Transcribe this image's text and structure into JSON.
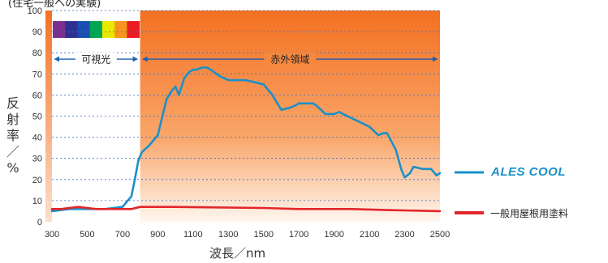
{
  "chart_data": {
    "type": "line",
    "title": "(住宅一般への実験)",
    "xlabel": "波長／nm",
    "ylabel": "反射率／%",
    "xlim": [
      300,
      2500
    ],
    "ylim": [
      0,
      100
    ],
    "xticks": [
      300,
      500,
      700,
      900,
      1100,
      1300,
      1500,
      1700,
      1900,
      2100,
      2300,
      2500
    ],
    "yticks": [
      0,
      10,
      20,
      30,
      40,
      50,
      60,
      70,
      80,
      90,
      100
    ],
    "grid": true,
    "legend": "right",
    "regions": [
      {
        "label": "可視光",
        "from": 300,
        "to": 800
      },
      {
        "label": "赤外領域",
        "from": 800,
        "to": 2500
      }
    ],
    "series": [
      {
        "name": "ALES COOL",
        "color": "#1a90c8",
        "x": [
          300,
          400,
          500,
          600,
          700,
          750,
          770,
          790,
          810,
          850,
          900,
          950,
          980,
          1000,
          1020,
          1050,
          1080,
          1100,
          1120,
          1150,
          1180,
          1200,
          1250,
          1300,
          1350,
          1400,
          1450,
          1500,
          1550,
          1600,
          1650,
          1680,
          1700,
          1740,
          1780,
          1800,
          1850,
          1900,
          1930,
          1950,
          2000,
          2050,
          2100,
          2150,
          2180,
          2200,
          2250,
          2280,
          2300,
          2330,
          2350,
          2400,
          2450,
          2480,
          2500
        ],
        "y": [
          5,
          6,
          6,
          6,
          7,
          12,
          20,
          29,
          33,
          36,
          41,
          58,
          62,
          64,
          60,
          68,
          71,
          72,
          72,
          73,
          73,
          72,
          69,
          67,
          67,
          67,
          66,
          65,
          60,
          53,
          54,
          55,
          56,
          56,
          56,
          55,
          51,
          51,
          52,
          51,
          49,
          47,
          45,
          41,
          42,
          42,
          34,
          25,
          21,
          23,
          26,
          25,
          25,
          22,
          23
        ]
      },
      {
        "name": "一般用屋根用塗料",
        "color": "#e3262b",
        "x": [
          300,
          350,
          450,
          550,
          650,
          750,
          800,
          1000,
          1500,
          1700,
          1800,
          2000,
          2200,
          2500
        ],
        "y": [
          6,
          6,
          7,
          6,
          6,
          6,
          7,
          7,
          6.5,
          6,
          6,
          6,
          5.5,
          5
        ]
      }
    ],
    "spectrum_colors": [
      "#7b2f8e",
      "#2e3192",
      "#1a4fb0",
      "#00a651",
      "#e8e800",
      "#f7941d",
      "#ec1c24"
    ]
  }
}
